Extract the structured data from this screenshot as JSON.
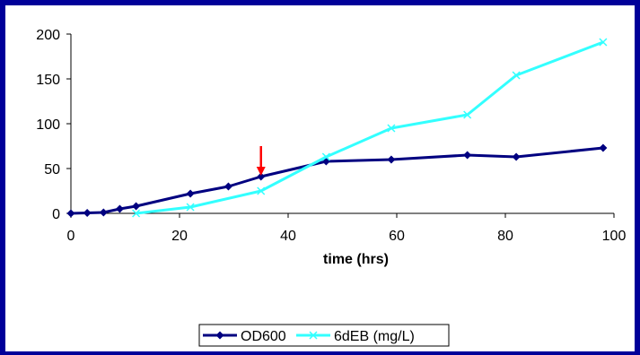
{
  "colors": {
    "background": "#000099",
    "plot_background": "#ffffff",
    "od600": "#000080",
    "six_deb": "#33ffff",
    "arrow": "#ff0000"
  },
  "chart_data": {
    "type": "line",
    "title": "",
    "xlabel": "time (hrs)",
    "ylabel": "",
    "xlim": [
      0,
      100
    ],
    "ylim": [
      0,
      200
    ],
    "x_ticks": [
      0,
      20,
      40,
      60,
      80,
      100
    ],
    "y_ticks": [
      0,
      50,
      100,
      150,
      200
    ],
    "x_tick_labels": [
      "0",
      "20",
      "40",
      "60",
      "80",
      "100"
    ],
    "y_tick_labels": [
      "0",
      "50",
      "100",
      "150",
      "200"
    ],
    "grid": false,
    "legend_position": "bottom",
    "series": [
      {
        "name": "OD600",
        "marker": "diamond",
        "color": "#000080",
        "x": [
          0,
          3,
          6,
          9,
          12,
          22,
          29,
          35,
          47,
          59,
          73,
          82,
          98
        ],
        "y": [
          0,
          0.5,
          1,
          5,
          8,
          22,
          30,
          41,
          58,
          60,
          65,
          63,
          73
        ]
      },
      {
        "name": "6dEB (mg/L)",
        "marker": "x",
        "color": "#33ffff",
        "x": [
          12,
          22,
          35,
          47,
          59,
          73,
          82,
          98
        ],
        "y": [
          0,
          7,
          25,
          63,
          95,
          110,
          154,
          191
        ]
      }
    ],
    "annotations": [
      {
        "type": "arrow",
        "x": 35,
        "y_from": 75,
        "y_to": 42,
        "color": "#ff0000"
      }
    ]
  }
}
